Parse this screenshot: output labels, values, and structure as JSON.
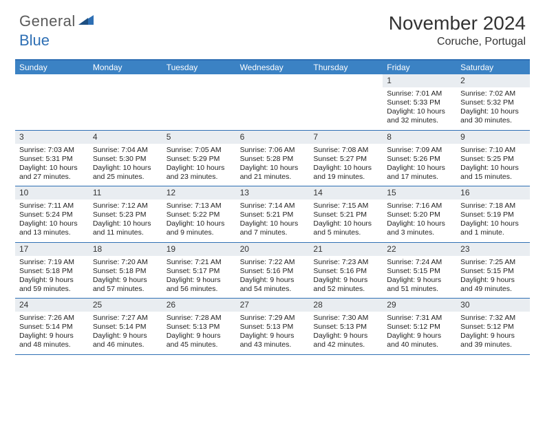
{
  "brand": {
    "grey": "General",
    "blue": "Blue"
  },
  "title": "November 2024",
  "location": "Coruche, Portugal",
  "colors": {
    "header_bg": "#3b82c4",
    "rule": "#2e6fb4",
    "daybar": "#e9edf1",
    "text": "#222222",
    "brand_grey": "#5a5a5a",
    "brand_blue": "#2e6fb4"
  },
  "daysOfWeek": [
    "Sunday",
    "Monday",
    "Tuesday",
    "Wednesday",
    "Thursday",
    "Friday",
    "Saturday"
  ],
  "layout": {
    "leadingBlanks": 5,
    "columns": 7
  },
  "days": [
    {
      "n": 1,
      "sr": "7:01 AM",
      "ss": "5:33 PM",
      "dl": "10 hours and 32 minutes."
    },
    {
      "n": 2,
      "sr": "7:02 AM",
      "ss": "5:32 PM",
      "dl": "10 hours and 30 minutes."
    },
    {
      "n": 3,
      "sr": "7:03 AM",
      "ss": "5:31 PM",
      "dl": "10 hours and 27 minutes."
    },
    {
      "n": 4,
      "sr": "7:04 AM",
      "ss": "5:30 PM",
      "dl": "10 hours and 25 minutes."
    },
    {
      "n": 5,
      "sr": "7:05 AM",
      "ss": "5:29 PM",
      "dl": "10 hours and 23 minutes."
    },
    {
      "n": 6,
      "sr": "7:06 AM",
      "ss": "5:28 PM",
      "dl": "10 hours and 21 minutes."
    },
    {
      "n": 7,
      "sr": "7:08 AM",
      "ss": "5:27 PM",
      "dl": "10 hours and 19 minutes."
    },
    {
      "n": 8,
      "sr": "7:09 AM",
      "ss": "5:26 PM",
      "dl": "10 hours and 17 minutes."
    },
    {
      "n": 9,
      "sr": "7:10 AM",
      "ss": "5:25 PM",
      "dl": "10 hours and 15 minutes."
    },
    {
      "n": 10,
      "sr": "7:11 AM",
      "ss": "5:24 PM",
      "dl": "10 hours and 13 minutes."
    },
    {
      "n": 11,
      "sr": "7:12 AM",
      "ss": "5:23 PM",
      "dl": "10 hours and 11 minutes."
    },
    {
      "n": 12,
      "sr": "7:13 AM",
      "ss": "5:22 PM",
      "dl": "10 hours and 9 minutes."
    },
    {
      "n": 13,
      "sr": "7:14 AM",
      "ss": "5:21 PM",
      "dl": "10 hours and 7 minutes."
    },
    {
      "n": 14,
      "sr": "7:15 AM",
      "ss": "5:21 PM",
      "dl": "10 hours and 5 minutes."
    },
    {
      "n": 15,
      "sr": "7:16 AM",
      "ss": "5:20 PM",
      "dl": "10 hours and 3 minutes."
    },
    {
      "n": 16,
      "sr": "7:18 AM",
      "ss": "5:19 PM",
      "dl": "10 hours and 1 minute."
    },
    {
      "n": 17,
      "sr": "7:19 AM",
      "ss": "5:18 PM",
      "dl": "9 hours and 59 minutes."
    },
    {
      "n": 18,
      "sr": "7:20 AM",
      "ss": "5:18 PM",
      "dl": "9 hours and 57 minutes."
    },
    {
      "n": 19,
      "sr": "7:21 AM",
      "ss": "5:17 PM",
      "dl": "9 hours and 56 minutes."
    },
    {
      "n": 20,
      "sr": "7:22 AM",
      "ss": "5:16 PM",
      "dl": "9 hours and 54 minutes."
    },
    {
      "n": 21,
      "sr": "7:23 AM",
      "ss": "5:16 PM",
      "dl": "9 hours and 52 minutes."
    },
    {
      "n": 22,
      "sr": "7:24 AM",
      "ss": "5:15 PM",
      "dl": "9 hours and 51 minutes."
    },
    {
      "n": 23,
      "sr": "7:25 AM",
      "ss": "5:15 PM",
      "dl": "9 hours and 49 minutes."
    },
    {
      "n": 24,
      "sr": "7:26 AM",
      "ss": "5:14 PM",
      "dl": "9 hours and 48 minutes."
    },
    {
      "n": 25,
      "sr": "7:27 AM",
      "ss": "5:14 PM",
      "dl": "9 hours and 46 minutes."
    },
    {
      "n": 26,
      "sr": "7:28 AM",
      "ss": "5:13 PM",
      "dl": "9 hours and 45 minutes."
    },
    {
      "n": 27,
      "sr": "7:29 AM",
      "ss": "5:13 PM",
      "dl": "9 hours and 43 minutes."
    },
    {
      "n": 28,
      "sr": "7:30 AM",
      "ss": "5:13 PM",
      "dl": "9 hours and 42 minutes."
    },
    {
      "n": 29,
      "sr": "7:31 AM",
      "ss": "5:12 PM",
      "dl": "9 hours and 40 minutes."
    },
    {
      "n": 30,
      "sr": "7:32 AM",
      "ss": "5:12 PM",
      "dl": "9 hours and 39 minutes."
    }
  ],
  "labels": {
    "sunrise": "Sunrise:",
    "sunset": "Sunset:",
    "daylight": "Daylight:"
  }
}
